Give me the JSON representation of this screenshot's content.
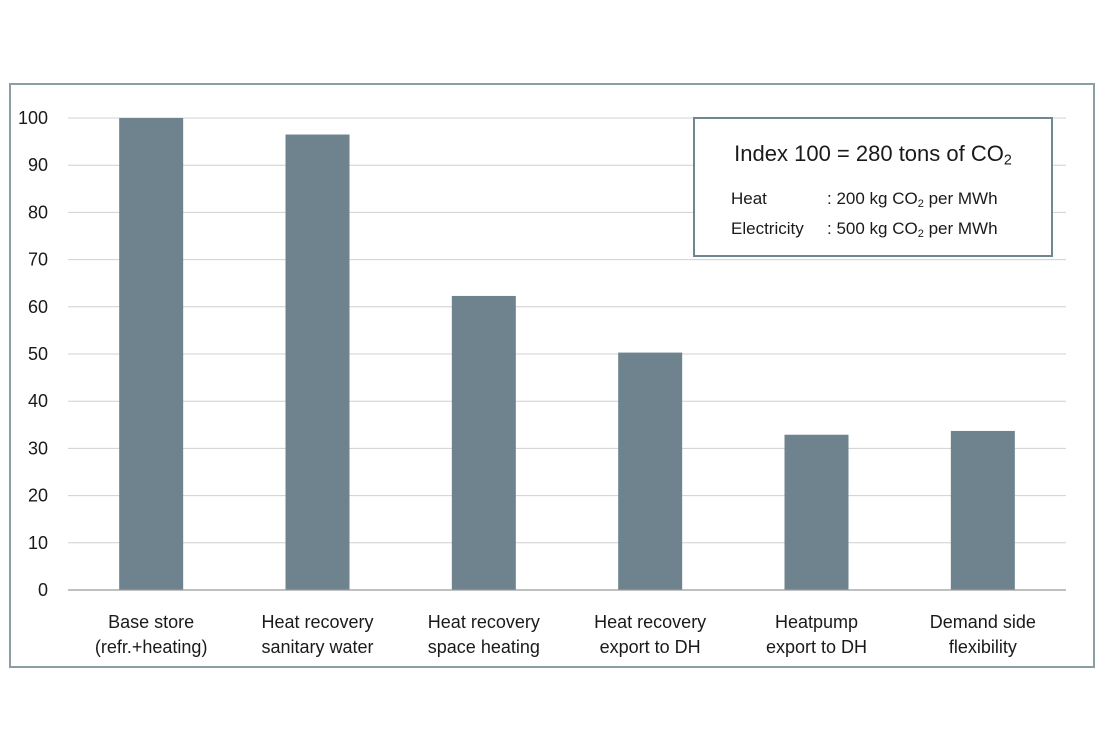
{
  "chart_data": {
    "type": "bar",
    "categories": [
      [
        "Base store",
        "(refr.+heating)"
      ],
      [
        "Heat recovery",
        "sanitary water"
      ],
      [
        "Heat recovery",
        "space heating"
      ],
      [
        "Heat recovery",
        "export to DH"
      ],
      [
        "Heatpump",
        "export to DH"
      ],
      [
        "Demand side",
        "flexibility"
      ]
    ],
    "values": [
      100,
      96.5,
      62.3,
      50.3,
      32.9,
      33.7
    ],
    "ylim": [
      0,
      100
    ],
    "yticks": [
      0,
      10,
      20,
      30,
      40,
      50,
      60,
      70,
      80,
      90,
      100
    ],
    "grid": true,
    "bar_color": "#6e838d",
    "grid_color": "#d0d0d0"
  },
  "note": {
    "title_text": "Index 100 = 280 tons of CO",
    "title_sub": "2",
    "rows": [
      {
        "label": "Heat",
        "value_pre": ": 200 kg CO",
        "value_sub": "2",
        "value_post": " per MWh"
      },
      {
        "label": "Electricity",
        "value_pre": ": 500 kg CO",
        "value_sub": "2",
        "value_post": " per MWh"
      }
    ]
  }
}
